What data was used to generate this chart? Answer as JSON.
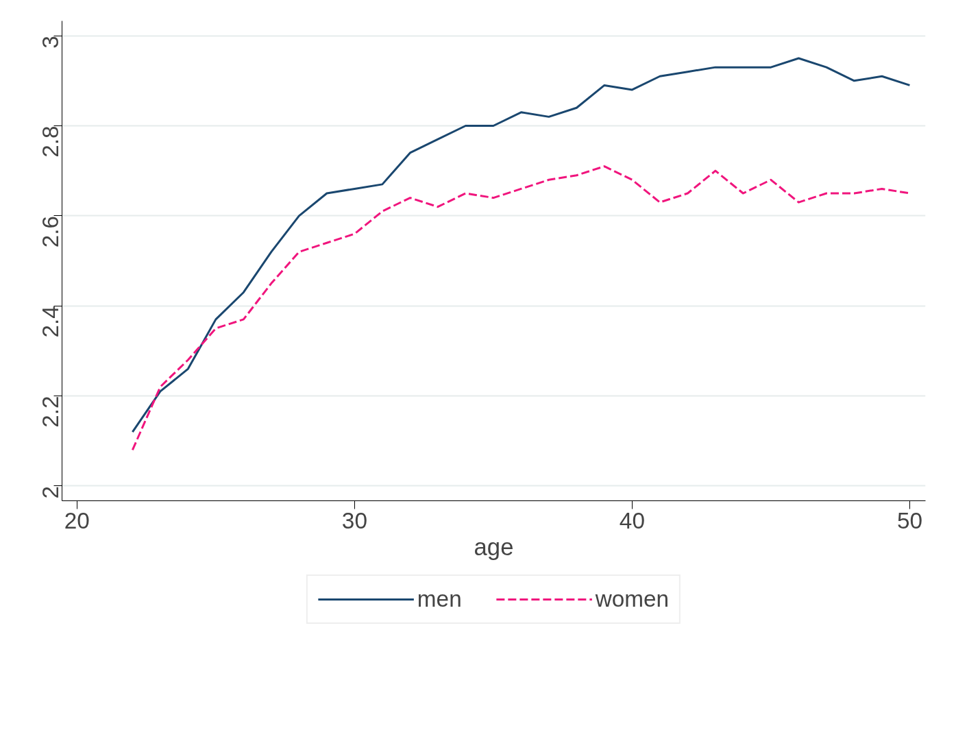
{
  "chart_data": {
    "type": "line",
    "xlabel": "age",
    "x": [
      22,
      23,
      24,
      25,
      26,
      27,
      28,
      29,
      30,
      31,
      32,
      33,
      34,
      35,
      36,
      37,
      38,
      39,
      40,
      41,
      42,
      43,
      44,
      45,
      46,
      47,
      48,
      49,
      50
    ],
    "series": [
      {
        "name": "men",
        "color": "#1a476f",
        "line_style": "solid",
        "values": [
          2.12,
          2.21,
          2.26,
          2.37,
          2.43,
          2.52,
          2.6,
          2.65,
          2.66,
          2.67,
          2.74,
          2.77,
          2.8,
          2.8,
          2.83,
          2.82,
          2.84,
          2.89,
          2.88,
          2.91,
          2.92,
          2.93,
          2.93,
          2.93,
          2.95,
          2.93,
          2.9,
          2.91,
          2.89
        ]
      },
      {
        "name": "women",
        "color": "#f0157d",
        "line_style": "dashed",
        "values": [
          2.08,
          2.22,
          2.28,
          2.35,
          2.37,
          2.45,
          2.52,
          2.54,
          2.56,
          2.61,
          2.64,
          2.62,
          2.65,
          2.64,
          2.66,
          2.68,
          2.69,
          2.71,
          2.68,
          2.63,
          2.65,
          2.7,
          2.65,
          2.68,
          2.63,
          2.65,
          2.65,
          2.66,
          2.65
        ]
      }
    ],
    "xlim": [
      19.46,
      50.57
    ],
    "ylim": [
      1.967,
      3.033
    ],
    "xticks": [
      20,
      30,
      40,
      50
    ],
    "yticks": [
      2,
      2.2,
      2.4,
      2.6,
      2.8,
      3
    ],
    "grid": "y",
    "legend": "bottom",
    "marker": "none"
  }
}
